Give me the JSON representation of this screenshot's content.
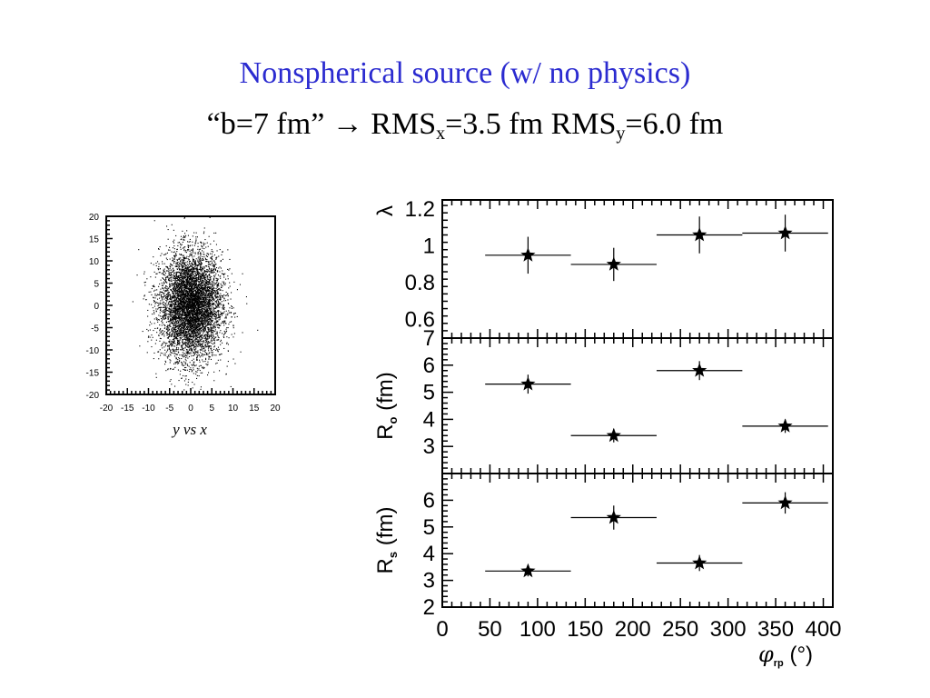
{
  "slide": {
    "title": "Nonspherical source (w/ no physics)",
    "subtitle_prefix": "“b=7 fm”",
    "arrow": "→",
    "rms_label": "RMS",
    "rms_x_sub": "x",
    "rms_x_value": "=3.5 fm",
    "rms_y_sub": "y",
    "rms_y_value": "=6.0 fm"
  },
  "chart_data": [
    {
      "type": "scatter",
      "title": "",
      "xlabel": "y vs x",
      "ylabel": "",
      "xlim": [
        -20,
        20
      ],
      "ylim": [
        -20,
        20
      ],
      "xticks": [
        -20,
        -15,
        -10,
        -5,
        0,
        5,
        10,
        15,
        20
      ],
      "yticks": [
        -20,
        -15,
        -10,
        -5,
        0,
        5,
        10,
        15,
        20
      ],
      "xtick_labels": [
        "-20",
        "-15",
        "-10",
        "-5",
        "0",
        "5",
        "10",
        "15",
        "20"
      ],
      "ytick_labels": [
        "-20",
        "-15",
        "-10",
        "-5",
        "0",
        "5",
        "10",
        "15",
        "20"
      ],
      "distribution": "gaussian point cloud centered at (0,0)",
      "rms_x": 3.5,
      "rms_y": 6.0,
      "n_points_approx": 6000
    },
    {
      "type": "scatter",
      "panels": [
        {
          "name": "lambda",
          "ylabel": "λ",
          "ylim": [
            0.5,
            1.25
          ],
          "yticks": [
            0.6,
            0.8,
            1,
            1.2
          ],
          "ytick_labels": [
            "0.6",
            "0.8",
            "1",
            "1.2"
          ],
          "x": [
            90,
            180,
            270,
            360
          ],
          "y": [
            0.95,
            0.9,
            1.06,
            1.07
          ],
          "xerr": [
            45,
            45,
            45,
            45
          ],
          "yerr": [
            0.1,
            0.09,
            0.1,
            0.1
          ]
        },
        {
          "name": "Ro",
          "ylabel_main": "R",
          "ylabel_sub": "o",
          "ylabel_unit": "(fm)",
          "ylim": [
            2,
            7
          ],
          "yticks": [
            3,
            4,
            5,
            6,
            7
          ],
          "ytick_labels": [
            "3",
            "4",
            "5",
            "6",
            "7"
          ],
          "x": [
            90,
            180,
            270,
            360
          ],
          "y": [
            5.3,
            3.4,
            5.8,
            3.75
          ],
          "xerr": [
            45,
            45,
            45,
            45
          ],
          "yerr": [
            0.35,
            0.25,
            0.35,
            0.25
          ]
        },
        {
          "name": "Rs",
          "ylabel_main": "R",
          "ylabel_sub": "s",
          "ylabel_unit": "(fm)",
          "ylim": [
            2,
            7
          ],
          "yticks": [
            2,
            3,
            4,
            5,
            6
          ],
          "ytick_labels": [
            "2",
            "3",
            "4",
            "5",
            "6"
          ],
          "x": [
            90,
            180,
            270,
            360
          ],
          "y": [
            3.35,
            5.35,
            3.65,
            5.9
          ],
          "xerr": [
            45,
            45,
            45,
            45
          ],
          "yerr": [
            0.2,
            0.45,
            0.3,
            0.4
          ]
        }
      ],
      "xlim": [
        0,
        410
      ],
      "xticks": [
        0,
        50,
        100,
        150,
        200,
        250,
        300,
        350,
        400
      ],
      "xtick_labels": [
        "0",
        "50",
        "100",
        "150",
        "200",
        "250",
        "300",
        "350",
        "400"
      ],
      "xlabel_main": "φ",
      "xlabel_sub": "rp",
      "xlabel_unit": "(°)",
      "marker": "star"
    }
  ]
}
